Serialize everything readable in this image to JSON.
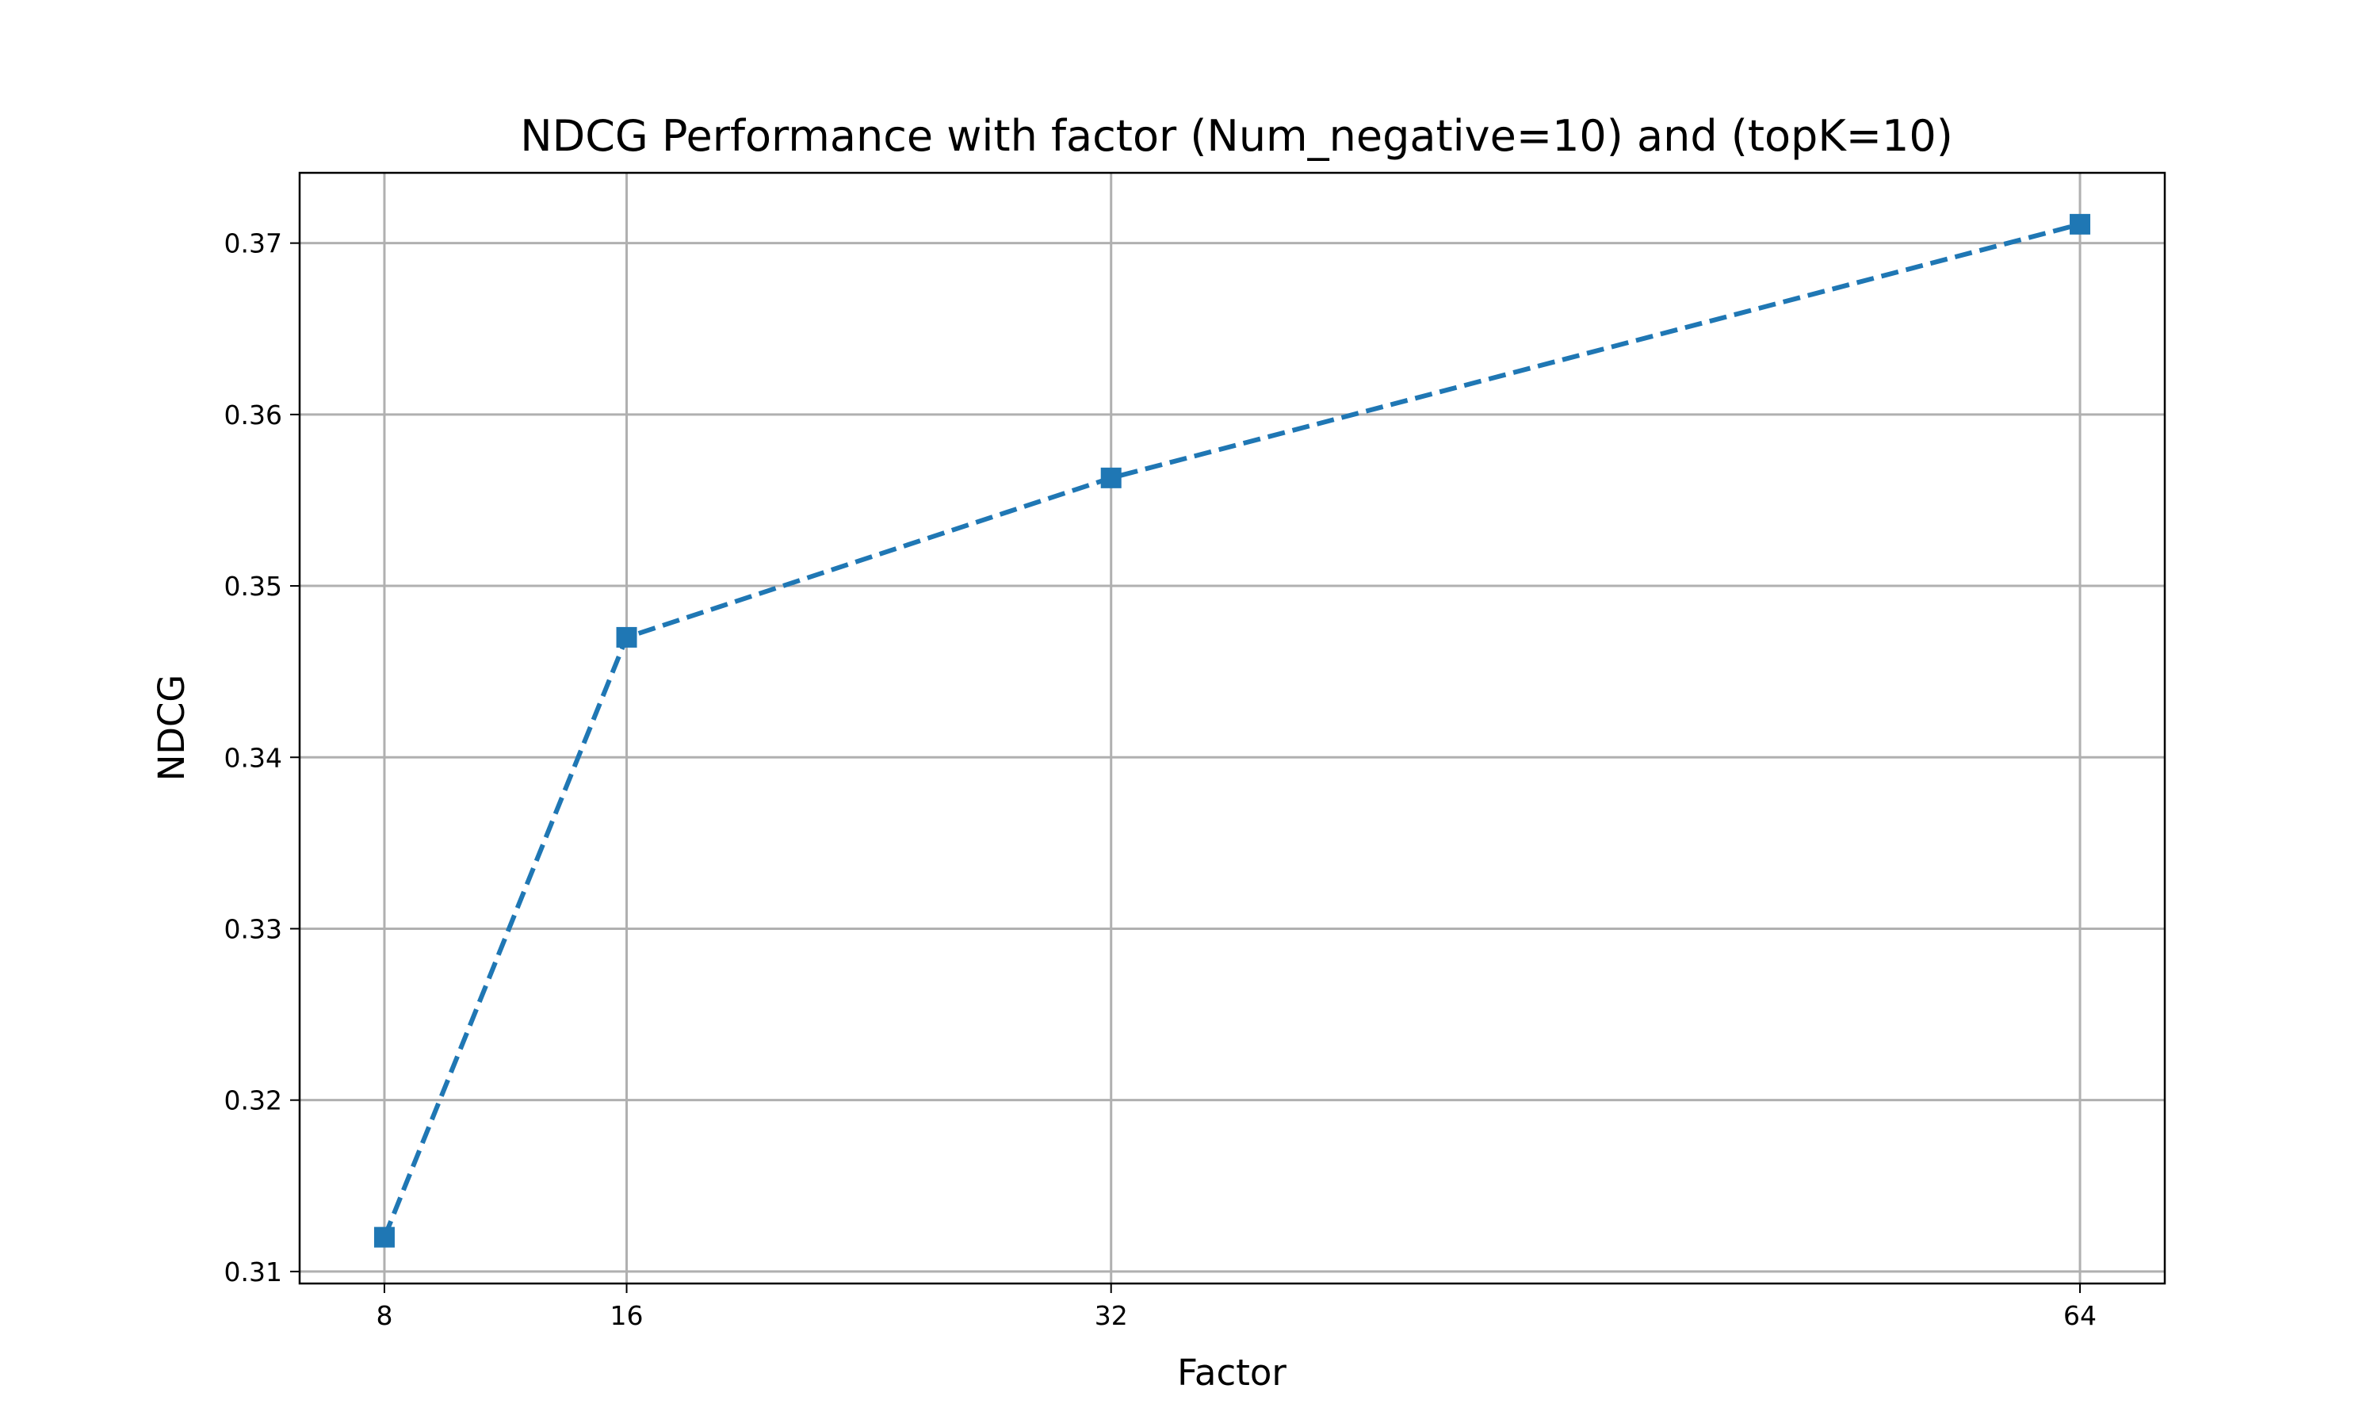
{
  "chart_data": {
    "type": "line",
    "title": "NDCG Performance with factor (Num_negative=10) and (topK=10)",
    "xlabel": "Factor",
    "ylabel": "NDCG",
    "x": [
      8,
      16,
      32,
      64
    ],
    "x_ticks": [
      "8",
      "16",
      "32",
      "64"
    ],
    "y_ticks": [
      "0.31",
      "0.32",
      "0.33",
      "0.34",
      "0.35",
      "0.36",
      "0.37"
    ],
    "xlim": [
      5.2,
      66.8
    ],
    "ylim": [
      0.3093,
      0.3741
    ],
    "grid": true,
    "series": [
      {
        "values": [
          0.312,
          0.347,
          0.3563,
          0.3711
        ],
        "color": "#1f77b4",
        "line_style": "dashed",
        "marker": "square"
      }
    ]
  }
}
